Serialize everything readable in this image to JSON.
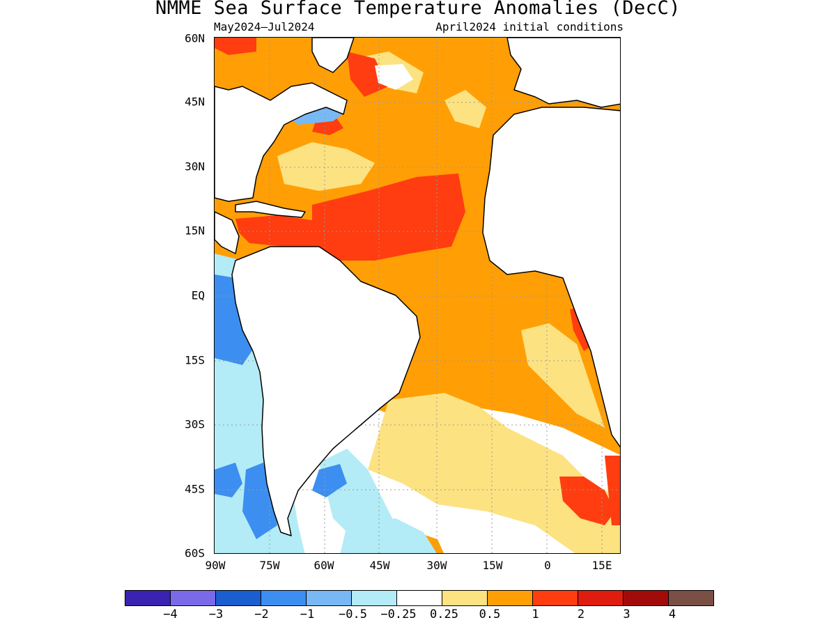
{
  "title": "NMME Sea Surface Temperature Anomalies (DecC)",
  "subtitle_left": "May2024–Jul2024",
  "subtitle_right": "April2024 initial conditions",
  "lat_labels": [
    "60N",
    "45N",
    "30N",
    "15N",
    "EQ",
    "15S",
    "30S",
    "45S",
    "60S"
  ],
  "lon_labels": [
    "90W",
    "75W",
    "60W",
    "45W",
    "30W",
    "15W",
    "0",
    "15E"
  ],
  "colorbar": {
    "colors": [
      "#3a23b1",
      "#7b6ae8",
      "#1a5ed0",
      "#3c8ff0",
      "#78b8f5",
      "#b3ecf6",
      "#ffffff",
      "#fde282",
      "#ff9f05",
      "#ff3d10",
      "#e01c0e",
      "#a30a0a",
      "#7a4f45"
    ],
    "labels": [
      "−4",
      "−3",
      "−2",
      "−1",
      "−0.5",
      "−0.25",
      "0.25",
      "0.5",
      "1",
      "2",
      "3",
      "4"
    ]
  },
  "map": {
    "region": "Atlantic Ocean",
    "lat_range": [
      "60S",
      "60N"
    ],
    "lon_range": [
      "90W",
      "15E"
    ],
    "land_color": "#ffffff",
    "gridlines": "dotted"
  }
}
